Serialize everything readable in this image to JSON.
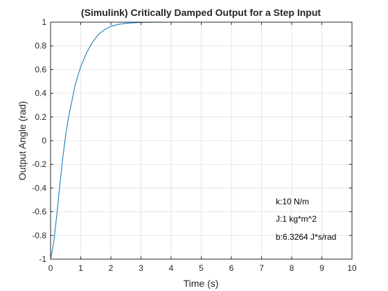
{
  "chart_data": {
    "type": "line",
    "title": "(Simulink) Critically Damped Output for a Step Input",
    "xlabel": "Time (s)",
    "ylabel": "Output Angle (rad)",
    "xlim": [
      0,
      10
    ],
    "ylim": [
      -1,
      1
    ],
    "xticks": [
      0,
      1,
      2,
      3,
      4,
      5,
      6,
      7,
      8,
      9,
      10
    ],
    "xtick_labels": [
      "0",
      "1",
      "2",
      "3",
      "4",
      "5",
      "6",
      "7",
      "8",
      "9",
      "10"
    ],
    "yticks": [
      -1,
      -0.8,
      -0.6,
      -0.4,
      -0.2,
      0,
      0.2,
      0.4,
      0.6,
      0.8,
      1
    ],
    "ytick_labels": [
      "-1",
      "-0.8",
      "-0.6",
      "-0.4",
      "-0.2",
      "0",
      "0.2",
      "0.4",
      "0.6",
      "0.8",
      "1"
    ],
    "grid": true,
    "series_color": "#0072bd",
    "series": [
      {
        "x": [
          0,
          0.1,
          0.2,
          0.3,
          0.4,
          0.5,
          0.6,
          0.7,
          0.8,
          0.9,
          1.0,
          1.2,
          1.4,
          1.6,
          1.8,
          2.0,
          2.25,
          2.5,
          2.75,
          3.0,
          3.5,
          4.0,
          5.0,
          6.0,
          7.0,
          8.0,
          9.0,
          10.0
        ],
        "y": [
          -1,
          -0.8683,
          -0.6431,
          -0.3923,
          -0.1566,
          0.0448,
          0.2047,
          0.326,
          0.4522,
          0.5418,
          0.6256,
          0.7443,
          0.8357,
          0.8981,
          0.9387,
          0.965,
          0.981,
          0.9903,
          0.9951,
          0.9976,
          0.9993,
          0.9998,
          1.0,
          1.0,
          1.0,
          1.0,
          1.0,
          1.0
        ]
      }
    ],
    "annotations": [
      "k:10 N/m",
      "J:1 kg*m^2",
      "b:6.3264 J*s/rad"
    ]
  }
}
